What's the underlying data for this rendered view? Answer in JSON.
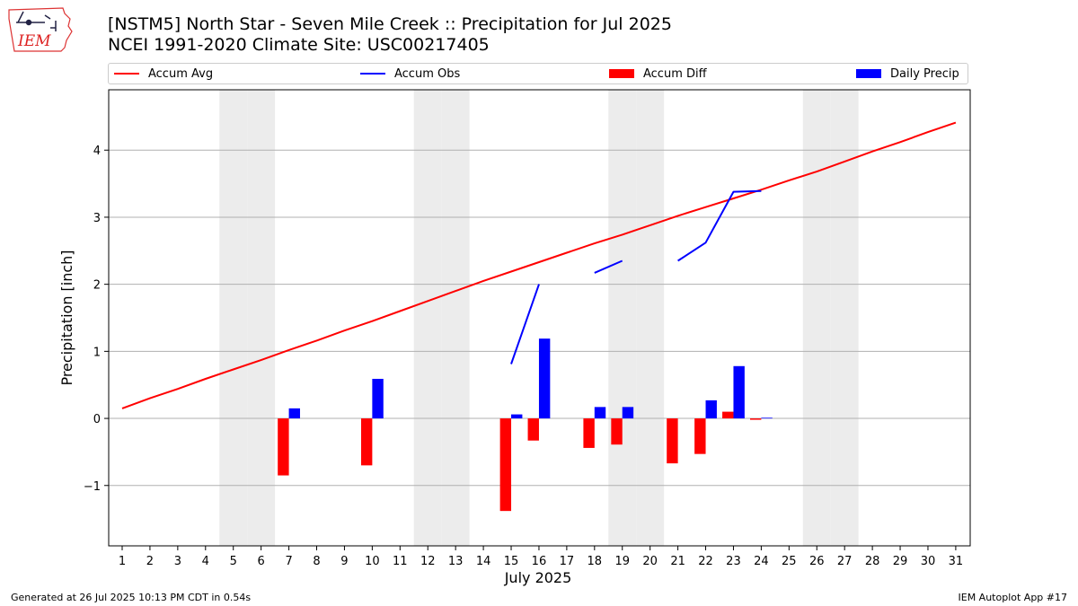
{
  "header": {
    "title_line1": "[NSTM5] North Star - Seven Mile Creek :: Precipitation for Jul 2025",
    "title_line2": "NCEI 1991-2020 Climate Site: USC00217405"
  },
  "logo": {
    "text": "IEM",
    "icon": "iem-iowa-logo"
  },
  "footer": {
    "left": "Generated at 26 Jul 2025 10:13 PM CDT in 0.54s",
    "right": "IEM Autoplot App #17"
  },
  "legend": {
    "accum_avg": "Accum Avg",
    "accum_obs": "Accum Obs",
    "accum_diff": "Accum Diff",
    "daily_precip": "Daily Precip"
  },
  "colors": {
    "accum_avg": "#ff0000",
    "accum_obs": "#0000ff",
    "accum_diff": "#ff0000",
    "daily_precip": "#0000ff",
    "weekend_shade": "#ececec",
    "grid": "#b0b0b0"
  },
  "chart_data": {
    "type": "bar",
    "xlabel": "July 2025",
    "ylabel": "Precipitation [inch]",
    "ylim": [
      -1.9,
      4.9
    ],
    "yticks": [
      -1,
      0,
      1,
      2,
      3,
      4
    ],
    "ytick_labels": [
      "−1",
      "0",
      "1",
      "2",
      "3",
      "4"
    ],
    "days": [
      1,
      2,
      3,
      4,
      5,
      6,
      7,
      8,
      9,
      10,
      11,
      12,
      13,
      14,
      15,
      16,
      17,
      18,
      19,
      20,
      21,
      22,
      23,
      24,
      25,
      26,
      27,
      28,
      29,
      30,
      31
    ],
    "weekend_days": [
      5,
      6,
      12,
      13,
      19,
      20,
      26,
      27
    ],
    "grid": "horizontal",
    "legend_position": "top",
    "series": [
      {
        "name": "Accum Avg",
        "kind": "line",
        "values": [
          0.15,
          0.3,
          0.44,
          0.59,
          0.73,
          0.87,
          1.02,
          1.16,
          1.31,
          1.45,
          1.6,
          1.75,
          1.9,
          2.05,
          2.19,
          2.33,
          2.47,
          2.61,
          2.74,
          2.88,
          3.02,
          3.15,
          3.28,
          3.41,
          3.55,
          3.68,
          3.83,
          3.98,
          4.12,
          4.27,
          4.41
        ]
      },
      {
        "name": "Accum Obs",
        "kind": "line",
        "values": [
          null,
          null,
          null,
          null,
          null,
          null,
          null,
          null,
          null,
          null,
          null,
          null,
          null,
          null,
          0.81,
          2.0,
          null,
          2.17,
          2.35,
          null,
          2.35,
          2.62,
          3.38,
          3.39,
          null,
          null,
          null,
          null,
          null,
          null,
          null
        ]
      },
      {
        "name": "Accum Diff",
        "kind": "bar",
        "values": [
          null,
          null,
          null,
          null,
          null,
          null,
          -0.85,
          null,
          null,
          -0.7,
          null,
          null,
          null,
          null,
          -1.38,
          -0.33,
          null,
          -0.44,
          -0.39,
          null,
          -0.67,
          -0.53,
          0.1,
          -0.02,
          null,
          null,
          null,
          null,
          null,
          null,
          null
        ]
      },
      {
        "name": "Daily Precip",
        "kind": "bar",
        "values": [
          null,
          null,
          null,
          null,
          null,
          null,
          0.15,
          null,
          null,
          0.59,
          null,
          null,
          null,
          null,
          0.06,
          1.19,
          null,
          0.17,
          0.17,
          null,
          null,
          0.27,
          0.78,
          0.01,
          null,
          null,
          null,
          null,
          null,
          null,
          null
        ]
      }
    ]
  }
}
